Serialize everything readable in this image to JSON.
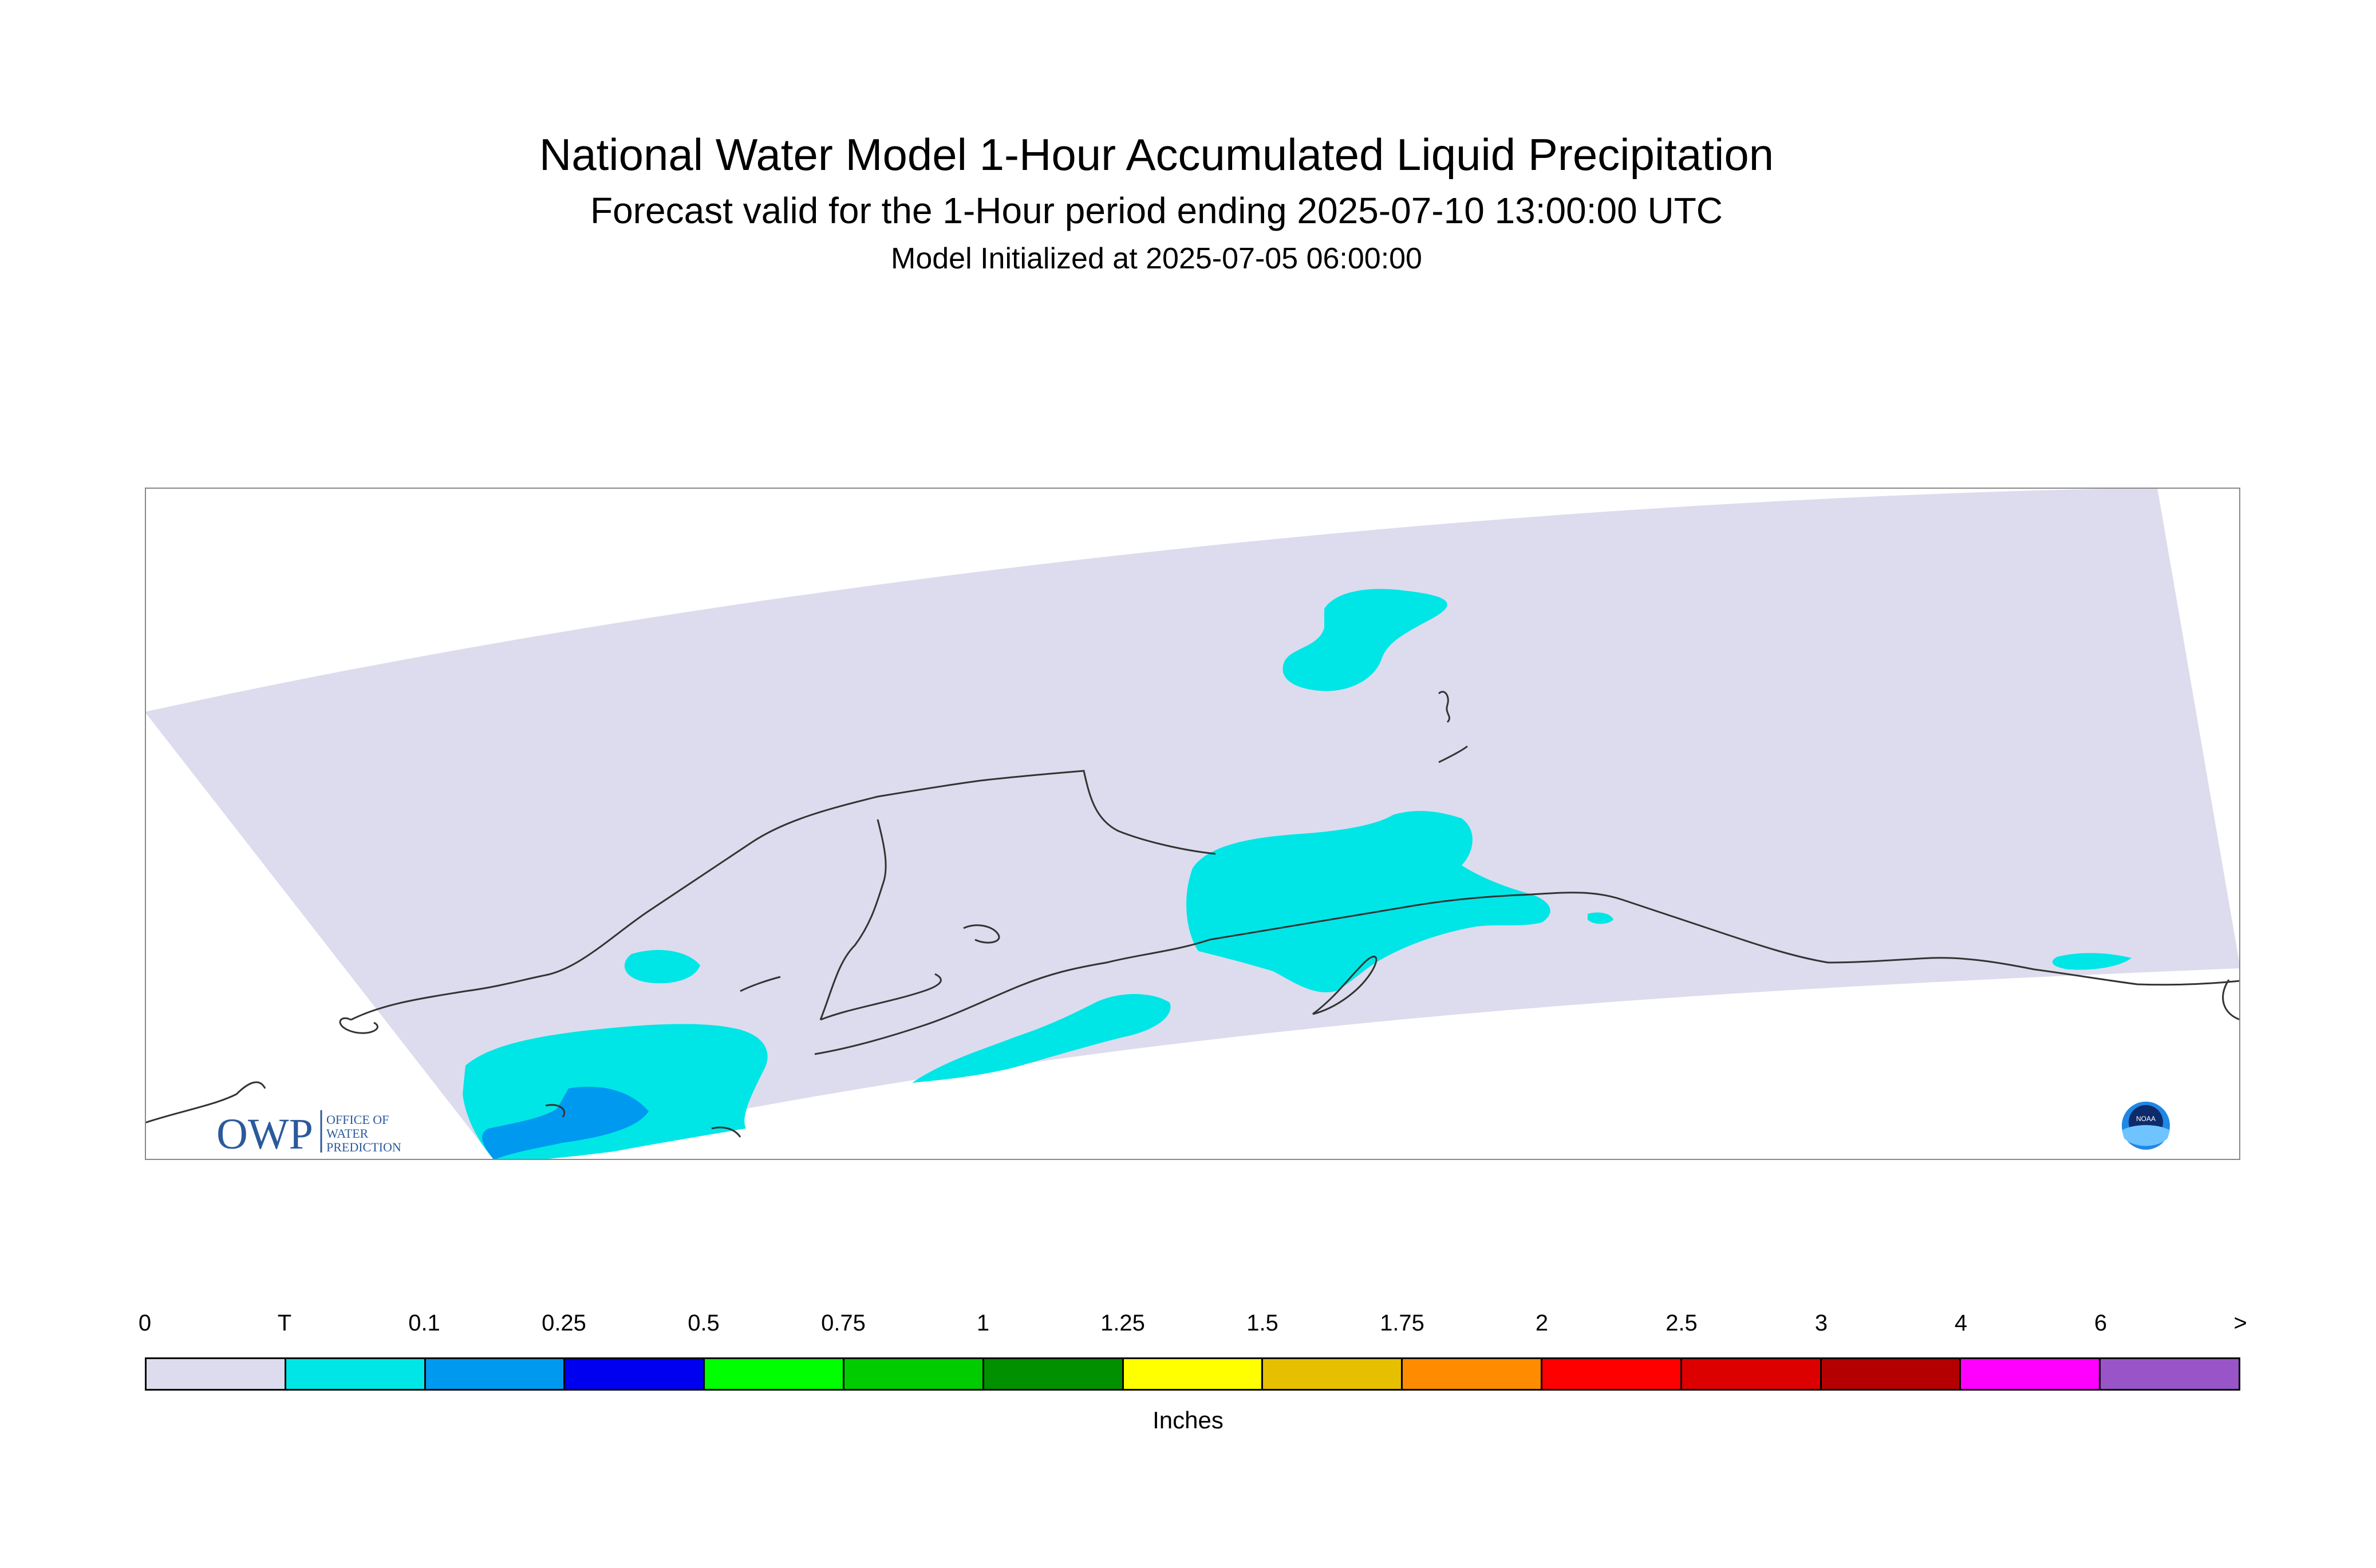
{
  "title": "National Water Model 1-Hour Accumulated Liquid Precipitation",
  "subtitle": "Forecast valid for the 1-Hour period ending 2025-07-10 13:00:00 UTC",
  "initialized": "Model Initialized at 2025-07-05 06:00:00",
  "logos": {
    "owp_mark": "OWP",
    "owp_text": [
      "OFFICE OF",
      "WATER",
      "PREDICTION"
    ],
    "noaa_text": "NOAA"
  },
  "colors": {
    "domain": "#dcdcee",
    "coast": "#333333"
  },
  "legend": {
    "units": "Inches",
    "ticks": [
      "0",
      "T",
      "0.1",
      "0.25",
      "0.5",
      "0.75",
      "1",
      "1.25",
      "1.5",
      "1.75",
      "2",
      "2.5",
      "3",
      "4",
      "6",
      ">"
    ],
    "bins": [
      {
        "range": "0 – T",
        "color": "#dcdcee"
      },
      {
        "range": "T – 0.1",
        "color": "#00e6e6"
      },
      {
        "range": "0.1 – 0.25",
        "color": "#0099f0"
      },
      {
        "range": "0.25 – 0.5",
        "color": "#0000f0"
      },
      {
        "range": "0.5 – 0.75",
        "color": "#00ff00"
      },
      {
        "range": "0.75 – 1",
        "color": "#00cc00"
      },
      {
        "range": "1 – 1.25",
        "color": "#009000"
      },
      {
        "range": "1.25 – 1.5",
        "color": "#ffff00"
      },
      {
        "range": "1.5 – 1.75",
        "color": "#e6c000"
      },
      {
        "range": "1.75 – 2",
        "color": "#ff8c00"
      },
      {
        "range": "2 – 2.5",
        "color": "#ff0000"
      },
      {
        "range": "2.5 – 3",
        "color": "#dd0000"
      },
      {
        "range": "3 – 4",
        "color": "#b40000"
      },
      {
        "range": "4 – 6",
        "color": "#ff00ff"
      },
      {
        "range": "6 – >",
        "color": "#9955c8"
      }
    ]
  },
  "precip_regions": [
    {
      "name": "north-slope-blob",
      "category": "T – 0.1",
      "color": "#00e6e6"
    },
    {
      "name": "southcentral-alaska",
      "category": "T – 0.1",
      "color": "#00e6e6"
    },
    {
      "name": "kenai-peninsula",
      "category": "T – 0.1",
      "color": "#00e6e6"
    },
    {
      "name": "western-alaska",
      "category": "T – 0.1",
      "color": "#00e6e6"
    },
    {
      "name": "seward-peninsula-small",
      "category": "T – 0.1",
      "color": "#00e6e6"
    },
    {
      "name": "prince-william-sound-small",
      "category": "T – 0.1",
      "color": "#00e6e6"
    },
    {
      "name": "southeast-alaska-small",
      "category": "T – 0.1",
      "color": "#00e6e6"
    },
    {
      "name": "bristol-bay-pocket",
      "category": "0.1 – 0.25",
      "color": "#0099f0"
    }
  ]
}
